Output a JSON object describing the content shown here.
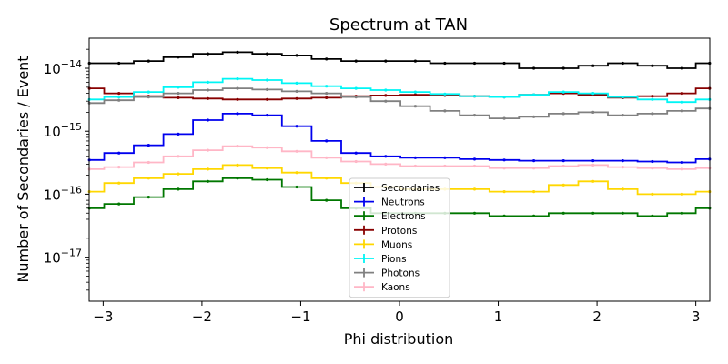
{
  "chart_data": {
    "type": "line",
    "title": "Spectrum at TAN",
    "xlabel": "Phi distribution",
    "ylabel": "Number of Secondaries / Event",
    "xlim": [
      -3.1416,
      3.1416
    ],
    "ylim": [
      2e-18,
      3e-14
    ],
    "yscale": "log",
    "grid": false,
    "legend_position": "center-bottom",
    "xticks": [
      -3,
      -2,
      -1,
      0,
      1,
      2,
      3
    ],
    "xtick_labels": [
      "−3",
      "−2",
      "−1",
      "0",
      "1",
      "2",
      "3"
    ],
    "ytick_labels": [
      {
        "base": "10",
        "exp": "−14",
        "value": 1e-14
      },
      {
        "base": "10",
        "exp": "−15",
        "value": 1e-15
      },
      {
        "base": "10",
        "exp": "−16",
        "value": 1e-16
      },
      {
        "base": "10",
        "exp": "−17",
        "value": 1e-17
      }
    ],
    "x": [
      -3.14,
      -2.84,
      -2.54,
      -2.24,
      -1.94,
      -1.64,
      -1.34,
      -1.04,
      -0.74,
      -0.44,
      -0.14,
      0.16,
      0.46,
      0.76,
      1.06,
      1.36,
      1.66,
      1.96,
      2.26,
      2.56,
      2.86,
      3.14
    ],
    "series": [
      {
        "name": "Secondaries",
        "color": "#000000",
        "values": [
          1.2e-14,
          1.2e-14,
          1.3e-14,
          1.5e-14,
          1.7e-14,
          1.8e-14,
          1.7e-14,
          1.6e-14,
          1.4e-14,
          1.3e-14,
          1.3e-14,
          1.3e-14,
          1.2e-14,
          1.2e-14,
          1.2e-14,
          1e-14,
          1e-14,
          1.1e-14,
          1.2e-14,
          1.1e-14,
          1e-14,
          1.2e-14
        ]
      },
      {
        "name": "Neutrons",
        "color": "#0000ee",
        "values": [
          3.5e-16,
          4.5e-16,
          6e-16,
          9e-16,
          1.5e-15,
          1.9e-15,
          1.8e-15,
          1.2e-15,
          7e-16,
          4.5e-16,
          4e-16,
          3.8e-16,
          3.8e-16,
          3.6e-16,
          3.5e-16,
          3.4e-16,
          3.4e-16,
          3.4e-16,
          3.4e-16,
          3.3e-16,
          3.2e-16,
          3.6e-16
        ]
      },
      {
        "name": "Electrons",
        "color": "#007700",
        "values": [
          6e-17,
          7e-17,
          9e-17,
          1.2e-16,
          1.6e-16,
          1.8e-16,
          1.7e-16,
          1.3e-16,
          8e-17,
          6e-17,
          5e-17,
          5e-17,
          5e-17,
          5e-17,
          4.5e-17,
          4.5e-17,
          5e-17,
          5e-17,
          5e-17,
          4.5e-17,
          5e-17,
          6e-17
        ]
      },
      {
        "name": "Protons",
        "color": "#880000",
        "values": [
          4.8e-15,
          4e-15,
          3.6e-15,
          3.4e-15,
          3.3e-15,
          3.2e-15,
          3.2e-15,
          3.3e-15,
          3.4e-15,
          3.6e-15,
          3.7e-15,
          3.8e-15,
          3.7e-15,
          3.6e-15,
          3.5e-15,
          3.8e-15,
          4e-15,
          3.8e-15,
          3.4e-15,
          3.6e-15,
          4e-15,
          4.8e-15
        ]
      },
      {
        "name": "Muons",
        "color": "#ffd700",
        "values": [
          1.1e-16,
          1.5e-16,
          1.8e-16,
          2.1e-16,
          2.5e-16,
          2.9e-16,
          2.6e-16,
          2.2e-16,
          1.8e-16,
          1.5e-16,
          1.3e-16,
          1.2e-16,
          1.2e-16,
          1.2e-16,
          1.1e-16,
          1.1e-16,
          1.4e-16,
          1.6e-16,
          1.2e-16,
          1e-16,
          1e-16,
          1.1e-16
        ]
      },
      {
        "name": "Pions",
        "color": "#00f5f5",
        "values": [
          3.2e-15,
          3.5e-15,
          4.2e-15,
          5e-15,
          6e-15,
          6.8e-15,
          6.5e-15,
          5.8e-15,
          5.2e-15,
          4.8e-15,
          4.5e-15,
          4.2e-15,
          3.9e-15,
          3.6e-15,
          3.5e-15,
          3.8e-15,
          4.2e-15,
          4e-15,
          3.5e-15,
          3.2e-15,
          2.9e-15,
          3.2e-15
        ]
      },
      {
        "name": "Photons",
        "color": "#808080",
        "values": [
          2.8e-15,
          3.1e-15,
          3.5e-15,
          4e-15,
          4.5e-15,
          4.8e-15,
          4.6e-15,
          4.3e-15,
          4e-15,
          3.5e-15,
          3e-15,
          2.5e-15,
          2.1e-15,
          1.8e-15,
          1.6e-15,
          1.7e-15,
          1.9e-15,
          2e-15,
          1.8e-15,
          1.9e-15,
          2.1e-15,
          2.3e-15
        ]
      },
      {
        "name": "Kaons",
        "color": "#ffb6c6",
        "values": [
          2.5e-16,
          2.7e-16,
          3.2e-16,
          4e-16,
          5e-16,
          5.8e-16,
          5.5e-16,
          4.8e-16,
          3.8e-16,
          3.3e-16,
          3e-16,
          2.8e-16,
          2.8e-16,
          2.8e-16,
          2.6e-16,
          2.6e-16,
          2.8e-16,
          2.9e-16,
          2.7e-16,
          2.6e-16,
          2.5e-16,
          2.6e-16
        ]
      }
    ]
  }
}
